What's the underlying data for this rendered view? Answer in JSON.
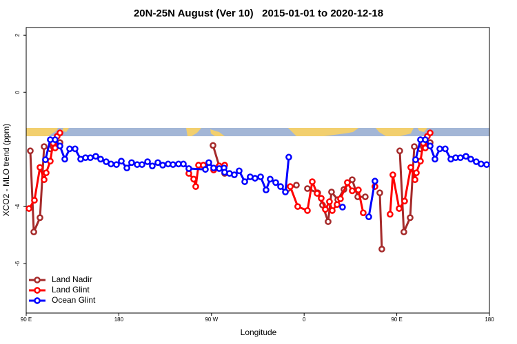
{
  "chart_data": {
    "type": "line",
    "title": "20N-25N August (Ver 10)   2015-01-01 to 2020-12-18",
    "x_label": "Longitude",
    "y_label": "XCO2 - MLO trend (ppm)",
    "xlim": [
      90,
      540
    ],
    "ylim": [
      -7.73,
      2.27
    ],
    "xticks": [
      {
        "value": 90,
        "label": "90 E"
      },
      180,
      {
        "value": 270,
        "label": "90 W"
      },
      {
        "value": 360,
        "label": "0"
      },
      {
        "value": 450,
        "label": "90 E"
      },
      {
        "value": 540,
        "label": "180"
      }
    ],
    "yticks": [
      2,
      0,
      -4,
      -6
    ],
    "legend": "bottom-left",
    "series": [
      {
        "name": "Land Nadir",
        "color": "#a52a2a",
        "x": [
          94.0,
          97.4,
          103.4,
          107.4,
          113.4,
          116.1,
          122.8,
          null,
          271.5,
          277.5,
          282.8,
          null,
          344.4,
          352.5,
          null,
          363.2,
          373.2,
          377.9,
          383.3,
          386.6,
          392.7,
          398.7,
          406.7,
          412.1,
          419.4,
          null,
          433.5,
          435.5,
          null,
          452.9,
          456.9,
          463.0,
          467.0,
          473.0,
          475.7,
          482.4
        ],
        "values": [
          -2.05,
          -4.89,
          -4.39,
          -1.9,
          -1.98,
          -1.9,
          -1.76,
          null,
          -1.86,
          -2.58,
          -2.84,
          null,
          -3.37,
          -3.25,
          null,
          -3.37,
          -3.52,
          -3.95,
          -4.53,
          -3.49,
          -3.76,
          -3.4,
          -3.06,
          -3.66,
          -3.66,
          null,
          -3.52,
          -5.49,
          null,
          -2.05,
          -4.89,
          -4.39,
          -1.9,
          -1.98,
          -1.9,
          -1.76
        ]
      },
      {
        "name": "Land Glint",
        "color": "#ff0000",
        "x": [
          92.7,
          98.0,
          103.4,
          107.4,
          109.4,
          113.4,
          116.1,
          118.1,
          120.1,
          122.8,
          null,
          248.0,
          252.7,
          254.7,
          257.4,
          262.1,
          null,
          272.1,
          277.5,
          282.8,
          null,
          346.5,
          353.8,
          363.2,
          367.9,
          372.6,
          376.6,
          380.6,
          384.6,
          387.3,
          392.0,
          395.3,
          402.0,
          406.7,
          412.7,
          417.4,
          null,
          428.8,
          null,
          443.5,
          446.2,
          452.3,
          457.6,
          463.6,
          467.7,
          469.0,
          473.0,
          475.7,
          477.7,
          479.7,
          482.4
        ],
        "values": [
          -4.07,
          -3.78,
          -2.63,
          -3.06,
          -2.82,
          -2.41,
          -1.78,
          -1.95,
          -1.54,
          -1.42,
          null,
          -2.84,
          -3.04,
          -3.3,
          -2.55,
          -2.55,
          null,
          -2.72,
          -2.58,
          -2.55,
          null,
          -3.3,
          -4.0,
          -4.14,
          -3.13,
          -3.54,
          -3.71,
          -4.1,
          -3.83,
          -4.14,
          -3.93,
          -3.73,
          -3.16,
          -3.45,
          -3.42,
          -4.22,
          null,
          -3.3,
          null,
          -4.27,
          -2.89,
          -4.07,
          -3.81,
          -2.63,
          -3.06,
          -2.82,
          -2.41,
          -1.78,
          -1.95,
          -1.54,
          -1.42
        ]
      },
      {
        "name": "Ocean Glint",
        "color": "#0000ff",
        "x": [
          108.7,
          113.4,
          118.1,
          122.8,
          127.5,
          132.2,
          137.5,
          142.9,
          147.6,
          152.3,
          157.6,
          162.3,
          167.7,
          172.4,
          177.7,
          182.4,
          187.8,
          192.4,
          197.8,
          202.5,
          207.9,
          212.5,
          217.9,
          222.6,
          227.9,
          232.6,
          238.0,
          242.7,
          248.0,
          264.1,
          267.4,
          272.1,
          277.5,
          282.2,
          282.8,
          287.5,
          292.2,
          296.9,
          302.3,
          307.6,
          312.3,
          317.7,
          323.0,
          327.0,
          332.4,
          337.1,
          341.8,
          345.1,
          null,
          397.3,
          null,
          422.8,
          428.8,
          null,
          468.3,
          473.0,
          477.7,
          482.4,
          487.1,
          491.8,
          497.1,
          502.5,
          507.2,
          511.8,
          517.2,
          521.9,
          527.2,
          531.9,
          537.3
        ],
        "values": [
          -2.36,
          -1.66,
          -1.66,
          -1.88,
          -2.34,
          -1.98,
          -1.98,
          -2.34,
          -2.29,
          -2.29,
          -2.24,
          -2.34,
          -2.43,
          -2.51,
          -2.53,
          -2.41,
          -2.65,
          -2.46,
          -2.53,
          -2.53,
          -2.43,
          -2.58,
          -2.46,
          -2.55,
          -2.51,
          -2.53,
          -2.51,
          -2.51,
          -2.67,
          -2.7,
          -2.46,
          -2.65,
          -2.67,
          -2.65,
          -2.8,
          -2.84,
          -2.89,
          -2.75,
          -3.13,
          -2.96,
          -3.01,
          -2.96,
          -3.42,
          -3.04,
          -3.16,
          -3.3,
          -3.49,
          -2.27,
          null,
          -4.02,
          null,
          -4.36,
          -3.11,
          null,
          -2.36,
          -1.66,
          -1.66,
          -1.88,
          -2.34,
          -1.98,
          -1.98,
          -2.34,
          -2.29,
          -2.29,
          -2.24,
          -2.34,
          -2.43,
          -2.51,
          -2.53
        ]
      }
    ]
  }
}
